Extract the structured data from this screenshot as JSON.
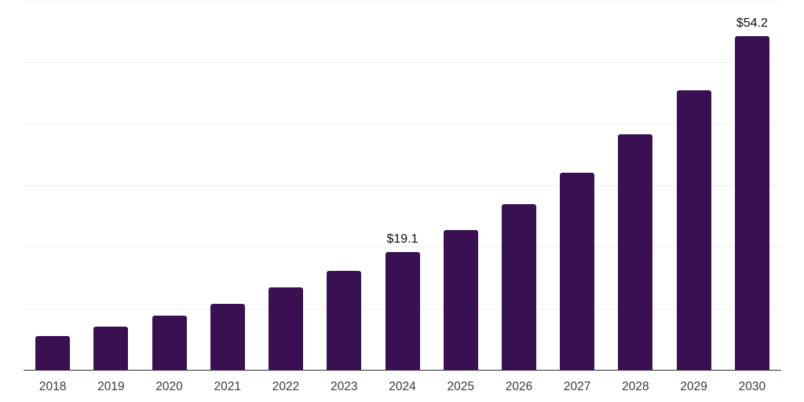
{
  "chart_data": {
    "type": "bar",
    "title": "",
    "xlabel": "",
    "ylabel": "",
    "categories": [
      "2018",
      "2019",
      "2020",
      "2021",
      "2022",
      "2023",
      "2024",
      "2025",
      "2026",
      "2027",
      "2028",
      "2029",
      "2030"
    ],
    "values": [
      5.5,
      7.0,
      8.8,
      10.7,
      13.4,
      16.1,
      19.1,
      22.7,
      27.0,
      32.1,
      38.3,
      45.5,
      54.2
    ],
    "point_labels": [
      "",
      "",
      "",
      "",
      "",
      "",
      "$19.1",
      "",
      "",
      "",
      "",
      "",
      "$54.2"
    ],
    "ylim": [
      0,
      60
    ],
    "gridline_step": 10,
    "grid": "horizontal-only",
    "legend_position": "none",
    "colors": {
      "bar": "#391153",
      "axis_line": "#2b2b2b",
      "gridline": "#f0f0f0",
      "tick_label": "#3a3a3a",
      "value_label": "#0d0d0d",
      "background": "#ffffff"
    }
  }
}
